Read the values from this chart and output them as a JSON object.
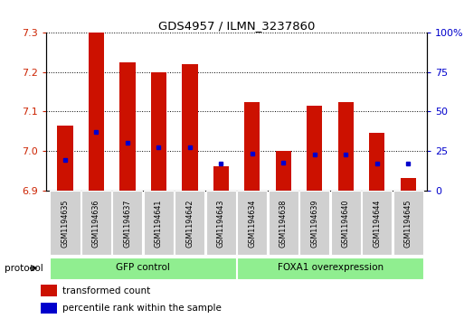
{
  "title": "GDS4957 / ILMN_3237860",
  "samples": [
    "GSM1194635",
    "GSM1194636",
    "GSM1194637",
    "GSM1194641",
    "GSM1194642",
    "GSM1194643",
    "GSM1194634",
    "GSM1194638",
    "GSM1194639",
    "GSM1194640",
    "GSM1194644",
    "GSM1194645"
  ],
  "red_values": [
    7.065,
    7.3,
    7.225,
    7.2,
    7.22,
    6.96,
    7.125,
    7.0,
    7.115,
    7.125,
    7.045,
    6.93
  ],
  "blue_values": [
    6.978,
    7.048,
    7.02,
    7.01,
    7.01,
    6.967,
    6.993,
    6.97,
    6.99,
    6.99,
    6.968,
    6.968
  ],
  "y_min": 6.9,
  "y_max": 7.3,
  "y_ticks": [
    6.9,
    7.0,
    7.1,
    7.2,
    7.3
  ],
  "right_tick_labels": [
    "0",
    "25",
    "50",
    "75",
    "100%"
  ],
  "bar_color": "#cc1100",
  "dot_color": "#0000cc",
  "gfp_count": 6,
  "foxa1_count": 6,
  "gfp_label": "GFP control",
  "foxa1_label": "FOXA1 overexpression",
  "protocol_label": "protocol",
  "legend_red": "transformed count",
  "legend_blue": "percentile rank within the sample",
  "gray_color": "#d0d0d0",
  "green_color": "#90ee90",
  "left_tick_color": "#cc2200",
  "right_tick_color": "#0000cc"
}
